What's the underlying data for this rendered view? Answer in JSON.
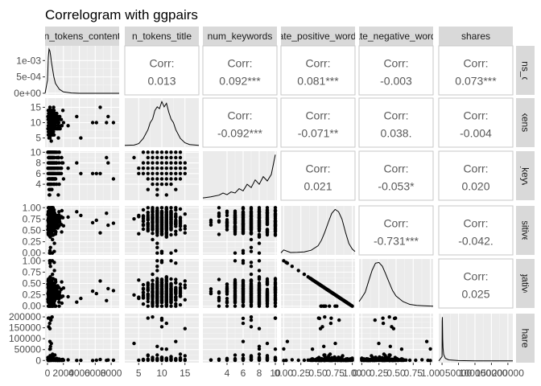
{
  "chart_data": {
    "type": "scatter",
    "title": "Correlogram with ggpairs",
    "variables": [
      {
        "name": "n_tokens_content",
        "strip_top": "n_tokens_content",
        "strip_right": "n_tokens_content",
        "range": [
          -300,
          9000
        ],
        "ticks": [
          0,
          2000,
          4000,
          6000,
          8000
        ],
        "tick_labels": [
          "0",
          "2000",
          "4000",
          "6000",
          "8000"
        ]
      },
      {
        "name": "n_tokens_title",
        "strip_top": "n_tokens_title",
        "strip_right": "n_tokens_title",
        "range": [
          2,
          18
        ],
        "ticks": [
          5,
          10,
          15
        ],
        "tick_labels": [
          "5",
          "10",
          "15"
        ]
      },
      {
        "name": "num_keywords",
        "strip_top": "num_keywords",
        "strip_right": "num_keywords",
        "range": [
          1,
          10.2
        ],
        "ticks": [
          4,
          6,
          8,
          10
        ],
        "tick_labels": [
          "4",
          "6",
          "8",
          "10"
        ]
      },
      {
        "name": "rate_positive_words",
        "strip_top": "rate_positive_words",
        "strip_right": "rate_positive_words",
        "range": [
          -0.04,
          1.04
        ],
        "ticks": [
          0,
          0.25,
          0.5,
          0.75,
          1
        ],
        "tick_labels": [
          "0.00",
          "0.25",
          "0.50",
          "0.75",
          "1.00"
        ]
      },
      {
        "name": "rate_negative_words",
        "strip_top": "rate_negative_words",
        "strip_right": "rate_negative_words",
        "range": [
          -0.04,
          1.04
        ],
        "ticks": [
          0,
          0.25,
          0.5,
          0.75,
          1
        ],
        "tick_labels": [
          "0.00",
          "0.25",
          "0.50",
          "0.75",
          "1.00"
        ]
      },
      {
        "name": "shares",
        "strip_top": "shares",
        "strip_right": "shares",
        "range": [
          -10000,
          215000
        ],
        "ticks": [
          0,
          50000,
          100000,
          150000,
          200000
        ],
        "tick_labels": [
          "0",
          "50000",
          "100000",
          "150000",
          "200000"
        ]
      }
    ],
    "density_y_labels": {
      "ticks": [
        0,
        0.0005,
        0.001
      ],
      "tick_labels": [
        "0e+00",
        "5e-04",
        "1e-03"
      ]
    },
    "correlations": [
      {
        "row": 0,
        "col": 1,
        "label": "Corr:",
        "value": "0.013"
      },
      {
        "row": 0,
        "col": 2,
        "label": "Corr:",
        "value": "0.092***"
      },
      {
        "row": 0,
        "col": 3,
        "label": "Corr:",
        "value": "0.081***"
      },
      {
        "row": 0,
        "col": 4,
        "label": "Corr:",
        "value": "-0.003"
      },
      {
        "row": 0,
        "col": 5,
        "label": "Corr:",
        "value": "0.073***"
      },
      {
        "row": 1,
        "col": 2,
        "label": "Corr:",
        "value": "-0.092***"
      },
      {
        "row": 1,
        "col": 3,
        "label": "Corr:",
        "value": "-0.071**"
      },
      {
        "row": 1,
        "col": 4,
        "label": "Corr:",
        "value": "0.038."
      },
      {
        "row": 1,
        "col": 5,
        "label": "Corr:",
        "value": "-0.004"
      },
      {
        "row": 2,
        "col": 3,
        "label": "Corr:",
        "value": "0.021"
      },
      {
        "row": 2,
        "col": 4,
        "label": "Corr:",
        "value": "-0.053*"
      },
      {
        "row": 2,
        "col": 5,
        "label": "Corr:",
        "value": "0.020"
      },
      {
        "row": 3,
        "col": 4,
        "label": "Corr:",
        "value": "-0.731***"
      },
      {
        "row": 3,
        "col": 5,
        "label": "Corr:",
        "value": "-0.042."
      },
      {
        "row": 4,
        "col": 5,
        "label": "Corr:",
        "value": "0.025"
      }
    ],
    "densities": [
      {
        "var": 0,
        "x": [
          -300,
          0,
          100,
          200,
          300,
          400,
          500,
          600,
          800,
          1000,
          1500,
          2000,
          3000,
          4000,
          5000,
          6000,
          7000,
          8000,
          9000
        ],
        "y": [
          0,
          0.0004,
          0.0011,
          0.00135,
          0.0013,
          0.00115,
          0.00095,
          0.0008,
          0.0005,
          0.0003,
          0.00012,
          4e-05,
          1e-05,
          0,
          0,
          0,
          0,
          0,
          0
        ]
      },
      {
        "var": 1,
        "x": [
          2,
          4,
          5,
          6,
          7,
          7.5,
          8,
          8.5,
          9,
          9.5,
          10,
          10.5,
          11,
          11.5,
          12,
          12.5,
          13,
          14,
          15,
          16,
          18
        ],
        "y": [
          0,
          0.002,
          0.01,
          0.04,
          0.09,
          0.13,
          0.15,
          0.2,
          0.22,
          0.21,
          0.25,
          0.22,
          0.24,
          0.19,
          0.15,
          0.13,
          0.09,
          0.04,
          0.015,
          0.005,
          0
        ]
      },
      {
        "var": 2,
        "x": [
          1,
          2,
          3,
          3.5,
          4,
          4.5,
          5,
          5.5,
          6,
          6.5,
          7,
          7.5,
          8,
          8.5,
          9,
          9.5,
          10
        ],
        "y": [
          0.005,
          0.015,
          0.03,
          0.05,
          0.035,
          0.06,
          0.05,
          0.09,
          0.07,
          0.13,
          0.1,
          0.17,
          0.13,
          0.2,
          0.16,
          0.22,
          0.4
        ]
      },
      {
        "var": 3,
        "x": [
          -0.04,
          0,
          0.1,
          0.2,
          0.3,
          0.4,
          0.5,
          0.55,
          0.6,
          0.65,
          0.7,
          0.75,
          0.8,
          0.85,
          0.9,
          0.95,
          1,
          1.04
        ],
        "y": [
          0.02,
          0.2,
          0.04,
          0.05,
          0.08,
          0.18,
          0.45,
          0.8,
          1.3,
          1.9,
          2.45,
          2.7,
          2.55,
          2.1,
          1.3,
          0.6,
          0.25,
          0.1
        ]
      },
      {
        "var": 4,
        "x": [
          -0.04,
          0,
          0.05,
          0.1,
          0.15,
          0.2,
          0.25,
          0.3,
          0.35,
          0.4,
          0.45,
          0.5,
          0.6,
          0.7,
          0.8,
          0.9,
          1,
          1.04
        ],
        "y": [
          0.3,
          0.55,
          0.9,
          1.6,
          2.3,
          2.75,
          2.8,
          2.55,
          2.05,
          1.5,
          1.0,
          0.65,
          0.3,
          0.12,
          0.06,
          0.03,
          0.01,
          0
        ]
      },
      {
        "var": 5,
        "x": [
          -10000,
          0,
          500,
          1000,
          1500,
          2000,
          3000,
          5000,
          10000,
          20000,
          50000,
          100000,
          200000,
          215000
        ],
        "y": [
          0,
          0.1,
          0.9,
          1.0,
          0.75,
          0.5,
          0.3,
          0.15,
          0.06,
          0.025,
          0.008,
          0.002,
          0.0005,
          0
        ]
      }
    ]
  }
}
